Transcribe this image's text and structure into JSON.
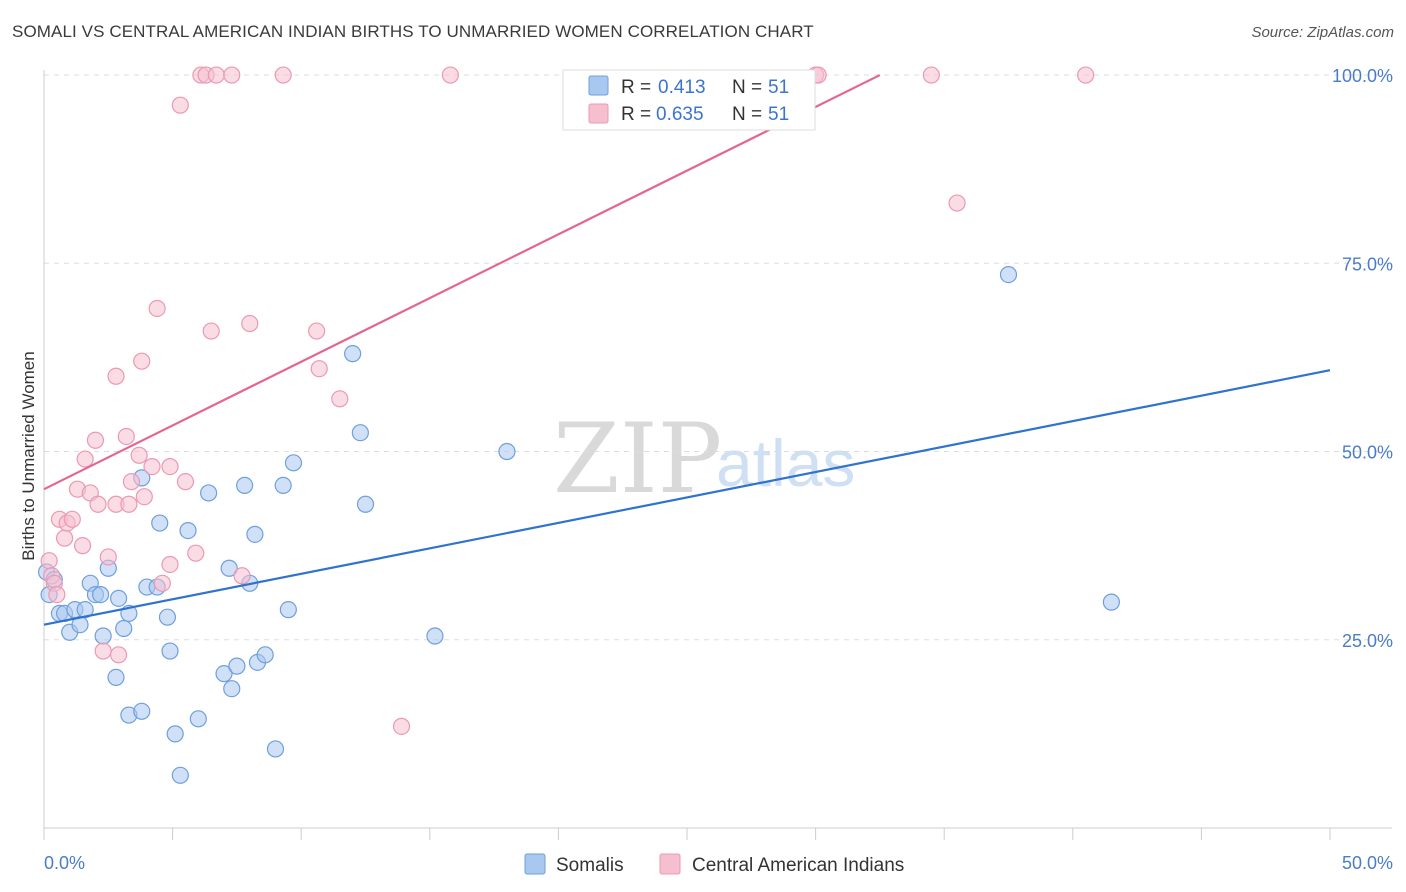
{
  "header": {
    "title": "SOMALI VS CENTRAL AMERICAN INDIAN BIRTHS TO UNMARRIED WOMEN CORRELATION CHART",
    "source": "Source: ZipAtlas.com"
  },
  "watermark": {
    "zip": "ZIP",
    "atlas": "atlas"
  },
  "legend": {
    "r_label": "R =",
    "n_label": "N =",
    "somali": {
      "r": "0.413",
      "n": "51"
    },
    "cai": {
      "r": "0.635",
      "n": "51"
    }
  },
  "colors": {
    "somali_fill": "#a9c8f0",
    "somali_stroke": "#6f9fdc",
    "somali_line": "#2f72cf",
    "cai_fill": "#f6bfd0",
    "cai_stroke": "#ec98b4",
    "cai_line": "#e4668f",
    "tick_text": "#4a7cc9",
    "grid": "#dddddd"
  },
  "chart_data": {
    "type": "scatter",
    "title": "SOMALI VS CENTRAL AMERICAN INDIAN BIRTHS TO UNMARRIED WOMEN CORRELATION CHART",
    "xlabel": "",
    "ylabel": "Births to Unmarried Women",
    "xlim": [
      0,
      50
    ],
    "ylim": [
      0,
      102
    ],
    "x_tick_labels": [
      "0.0%",
      "50.0%"
    ],
    "y_ticks": [
      25,
      50,
      75,
      100
    ],
    "y_tick_labels": [
      "25.0%",
      "50.0%",
      "75.0%",
      "100.0%"
    ],
    "grid": true,
    "legend_position": "top-center",
    "series": [
      {
        "name": "Somalis",
        "r": 0.413,
        "n": 51,
        "trend": {
          "x": [
            0,
            50
          ],
          "y": [
            27.0,
            60.8
          ]
        },
        "points": [
          [
            0.1,
            34.0
          ],
          [
            0.2,
            31.0
          ],
          [
            0.4,
            33.0
          ],
          [
            0.6,
            28.5
          ],
          [
            0.8,
            28.5
          ],
          [
            1.0,
            26.0
          ],
          [
            1.2,
            29.0
          ],
          [
            1.4,
            27.0
          ],
          [
            1.6,
            29.0
          ],
          [
            1.8,
            32.5
          ],
          [
            2.0,
            31.0
          ],
          [
            2.2,
            31.0
          ],
          [
            2.3,
            25.5
          ],
          [
            2.5,
            34.5
          ],
          [
            2.8,
            20.0
          ],
          [
            2.9,
            30.5
          ],
          [
            3.1,
            26.5
          ],
          [
            3.3,
            15.0
          ],
          [
            3.3,
            28.5
          ],
          [
            3.8,
            15.5
          ],
          [
            3.8,
            46.5
          ],
          [
            4.0,
            32.0
          ],
          [
            4.4,
            32.0
          ],
          [
            4.5,
            40.5
          ],
          [
            4.8,
            28.0
          ],
          [
            4.9,
            23.5
          ],
          [
            5.1,
            12.5
          ],
          [
            5.3,
            7.0
          ],
          [
            5.6,
            39.5
          ],
          [
            6.0,
            14.5
          ],
          [
            6.4,
            44.5
          ],
          [
            7.0,
            20.5
          ],
          [
            7.3,
            18.5
          ],
          [
            7.5,
            21.5
          ],
          [
            7.2,
            34.5
          ],
          [
            7.8,
            45.5
          ],
          [
            8.0,
            32.5
          ],
          [
            8.2,
            39.0
          ],
          [
            8.3,
            22.0
          ],
          [
            8.6,
            23.0
          ],
          [
            9.0,
            10.5
          ],
          [
            9.3,
            45.5
          ],
          [
            9.5,
            29.0
          ],
          [
            9.7,
            48.5
          ],
          [
            12.0,
            63.0
          ],
          [
            12.3,
            52.5
          ],
          [
            12.5,
            43.0
          ],
          [
            15.2,
            25.5
          ],
          [
            18.0,
            50.0
          ],
          [
            37.5,
            73.5
          ],
          [
            41.5,
            30.0
          ]
        ]
      },
      {
        "name": "Central American Indians",
        "r": 0.635,
        "n": 51,
        "trend": {
          "x": [
            0,
            32.5
          ],
          "y": [
            45.0,
            100.0
          ]
        },
        "points": [
          [
            0.2,
            35.5
          ],
          [
            0.3,
            33.5
          ],
          [
            0.4,
            32.5
          ],
          [
            0.5,
            31.0
          ],
          [
            0.6,
            41.0
          ],
          [
            0.8,
            38.5
          ],
          [
            0.9,
            40.5
          ],
          [
            1.1,
            41.0
          ],
          [
            1.3,
            45.0
          ],
          [
            1.5,
            37.5
          ],
          [
            1.6,
            49.0
          ],
          [
            1.8,
            44.5
          ],
          [
            2.0,
            51.5
          ],
          [
            2.1,
            43.0
          ],
          [
            2.3,
            23.5
          ],
          [
            2.5,
            36.0
          ],
          [
            2.8,
            43.0
          ],
          [
            2.8,
            60.0
          ],
          [
            2.9,
            23.0
          ],
          [
            3.2,
            52.0
          ],
          [
            3.3,
            43.0
          ],
          [
            3.4,
            46.0
          ],
          [
            3.7,
            49.5
          ],
          [
            3.8,
            62.0
          ],
          [
            3.9,
            44.0
          ],
          [
            4.2,
            48.0
          ],
          [
            4.4,
            69.0
          ],
          [
            4.6,
            32.5
          ],
          [
            4.9,
            35.0
          ],
          [
            4.9,
            48.0
          ],
          [
            5.3,
            96.0
          ],
          [
            5.5,
            46.0
          ],
          [
            5.9,
            36.5
          ],
          [
            6.1,
            100.0
          ],
          [
            6.3,
            100.0
          ],
          [
            6.5,
            66.0
          ],
          [
            6.7,
            100.0
          ],
          [
            7.3,
            100.0
          ],
          [
            7.7,
            33.5
          ],
          [
            8.0,
            67.0
          ],
          [
            9.3,
            100.0
          ],
          [
            10.6,
            66.0
          ],
          [
            10.7,
            61.0
          ],
          [
            11.5,
            57.0
          ],
          [
            13.9,
            13.5
          ],
          [
            15.8,
            100.0
          ],
          [
            30.0,
            100.0
          ],
          [
            30.1,
            100.0
          ],
          [
            34.5,
            100.0
          ],
          [
            35.5,
            83.0
          ],
          [
            40.5,
            100.0
          ]
        ]
      }
    ]
  }
}
